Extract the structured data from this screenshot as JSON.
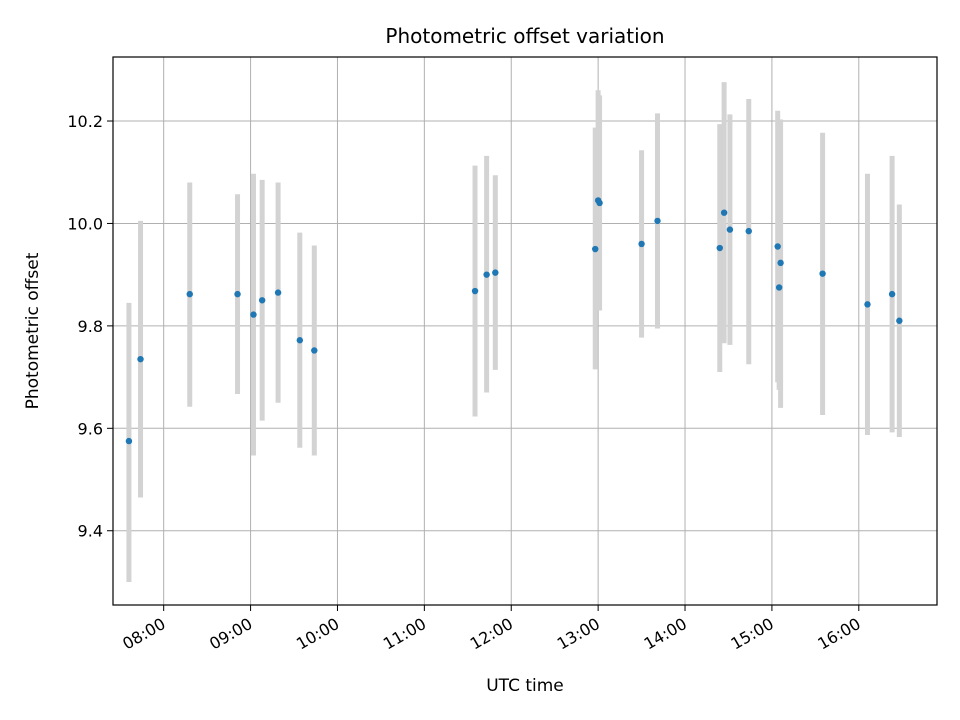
{
  "chart_data": {
    "type": "scatter",
    "title": "Photometric offset variation",
    "xlabel": "UTC time",
    "ylabel": "Photometric offset",
    "x_unit": "hours UTC",
    "xlim": [
      "07:25",
      "16:54"
    ],
    "ylim": [
      9.255,
      10.325
    ],
    "x_ticks": [
      "08:00",
      "09:00",
      "10:00",
      "11:00",
      "12:00",
      "13:00",
      "14:00",
      "15:00",
      "16:00"
    ],
    "y_ticks": [
      "9.4",
      "9.6",
      "9.8",
      "10.0",
      "10.2"
    ],
    "grid": true,
    "point_color": "#1f77b4",
    "errorbar_color": "#d3d3d3",
    "points": [
      {
        "x": "07:36",
        "y": 9.575,
        "yerr_low": 0.275,
        "yerr_high": 0.27
      },
      {
        "x": "07:44",
        "y": 9.735,
        "yerr_low": 0.27,
        "yerr_high": 0.27
      },
      {
        "x": "08:18",
        "y": 9.862,
        "yerr_low": 0.22,
        "yerr_high": 0.218
      },
      {
        "x": "08:51",
        "y": 9.862,
        "yerr_low": 0.195,
        "yerr_high": 0.195
      },
      {
        "x": "09:02",
        "y": 9.822,
        "yerr_low": 0.275,
        "yerr_high": 0.275
      },
      {
        "x": "09:08",
        "y": 9.85,
        "yerr_low": 0.235,
        "yerr_high": 0.235
      },
      {
        "x": "09:19",
        "y": 9.865,
        "yerr_low": 0.215,
        "yerr_high": 0.215
      },
      {
        "x": "09:34",
        "y": 9.772,
        "yerr_low": 0.21,
        "yerr_high": 0.21
      },
      {
        "x": "09:44",
        "y": 9.752,
        "yerr_low": 0.205,
        "yerr_high": 0.205
      },
      {
        "x": "11:35",
        "y": 9.868,
        "yerr_low": 0.245,
        "yerr_high": 0.245
      },
      {
        "x": "11:43",
        "y": 9.9,
        "yerr_low": 0.23,
        "yerr_high": 0.232
      },
      {
        "x": "11:49",
        "y": 9.904,
        "yerr_low": 0.19,
        "yerr_high": 0.19
      },
      {
        "x": "12:58",
        "y": 9.95,
        "yerr_low": 0.235,
        "yerr_high": 0.237
      },
      {
        "x": "13:00",
        "y": 10.045,
        "yerr_low": 0.215,
        "yerr_high": 0.215
      },
      {
        "x": "13:01",
        "y": 10.04,
        "yerr_low": 0.21,
        "yerr_high": 0.21
      },
      {
        "x": "13:30",
        "y": 9.96,
        "yerr_low": 0.183,
        "yerr_high": 0.183
      },
      {
        "x": "13:41",
        "y": 10.005,
        "yerr_low": 0.21,
        "yerr_high": 0.21
      },
      {
        "x": "14:24",
        "y": 9.952,
        "yerr_low": 0.242,
        "yerr_high": 0.242
      },
      {
        "x": "14:27",
        "y": 10.021,
        "yerr_low": 0.255,
        "yerr_high": 0.255
      },
      {
        "x": "14:31",
        "y": 9.988,
        "yerr_low": 0.225,
        "yerr_high": 0.225
      },
      {
        "x": "14:44",
        "y": 9.985,
        "yerr_low": 0.26,
        "yerr_high": 0.258
      },
      {
        "x": "15:04",
        "y": 9.955,
        "yerr_low": 0.265,
        "yerr_high": 0.265
      },
      {
        "x": "15:05",
        "y": 9.875,
        "yerr_low": 0.2,
        "yerr_high": 0.2
      },
      {
        "x": "15:06",
        "y": 9.923,
        "yerr_low": 0.283,
        "yerr_high": 0.28
      },
      {
        "x": "15:35",
        "y": 9.902,
        "yerr_low": 0.276,
        "yerr_high": 0.275
      },
      {
        "x": "16:06",
        "y": 9.842,
        "yerr_low": 0.255,
        "yerr_high": 0.255
      },
      {
        "x": "16:23",
        "y": 9.862,
        "yerr_low": 0.27,
        "yerr_high": 0.27
      },
      {
        "x": "16:28",
        "y": 9.81,
        "yerr_low": 0.227,
        "yerr_high": 0.227
      }
    ]
  }
}
